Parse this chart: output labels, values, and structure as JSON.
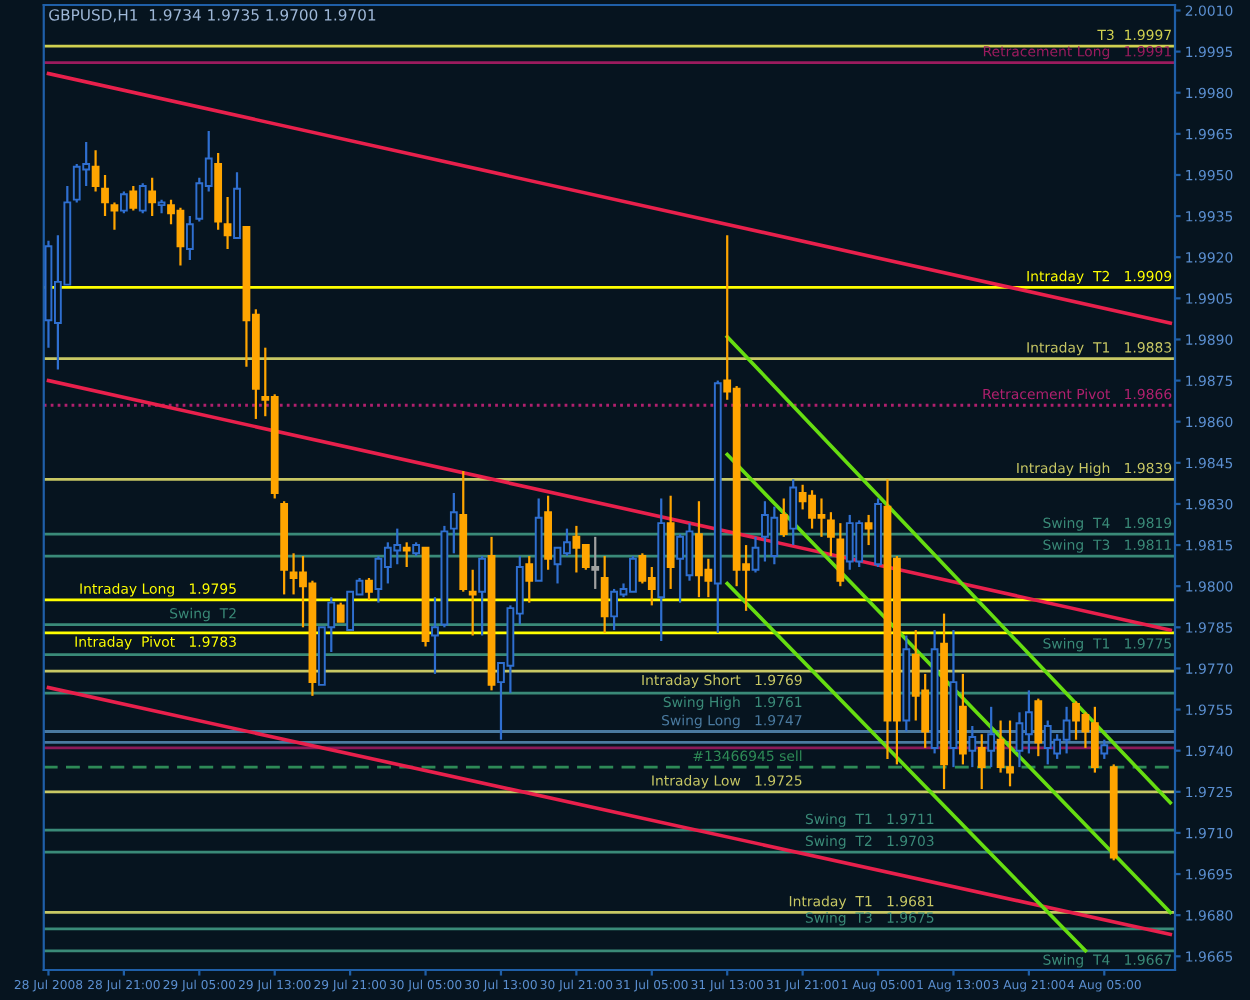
{
  "chart_data": {
    "type": "candlestick",
    "title": "GBPUSD,H1  1.9734 1.9735 1.9700 1.9701",
    "categories": [
      "28 Jul 2008",
      null,
      null,
      null,
      null,
      null,
      null,
      null,
      "28 Jul 21:00",
      null,
      null,
      null,
      null,
      null,
      null,
      null,
      "29 Jul 05:00",
      null,
      null,
      null,
      null,
      null,
      null,
      null,
      "29 Jul 13:00",
      null,
      null,
      null,
      null,
      null,
      null,
      null,
      "29 Jul 21:00",
      null,
      null,
      null,
      null,
      null,
      null,
      null,
      "30 Jul 05:00",
      null,
      null,
      null,
      null,
      null,
      null,
      null,
      "30 Jul 13:00",
      null,
      null,
      null,
      null,
      null,
      null,
      null,
      "30 Jul 21:00",
      null,
      null,
      null,
      null,
      null,
      null,
      null,
      "31 Jul 05:00",
      null,
      null,
      null,
      null,
      null,
      null,
      null,
      "31 Jul 13:00",
      null,
      null,
      null,
      null,
      null,
      null,
      null,
      "31 Jul 21:00",
      null,
      null,
      null,
      null,
      null,
      null,
      null,
      "1 Aug 05:00",
      null,
      null,
      null,
      null,
      null,
      null,
      null,
      "1 Aug 13:00",
      null,
      null,
      null,
      null,
      null,
      null,
      null,
      "3 Aug 21:00",
      null,
      null,
      null,
      null,
      null,
      null,
      null,
      "4 Aug 05:00",
      null,
      null,
      null,
      null,
      null,
      null,
      null
    ],
    "ylim": [
      1.966,
      2.0012
    ],
    "yticks": [
      {
        "value": 1.9665,
        "label": "1.9665"
      },
      {
        "value": 1.968,
        "label": "1.9680"
      },
      {
        "value": 1.9695,
        "label": "1.9695"
      },
      {
        "value": 1.971,
        "label": "1.9710"
      },
      {
        "value": 1.9725,
        "label": "1.9725"
      },
      {
        "value": 1.974,
        "label": "1.9740"
      },
      {
        "value": 1.9755,
        "label": "1.9755"
      },
      {
        "value": 1.977,
        "label": "1.9770"
      },
      {
        "value": 1.9785,
        "label": "1.9785"
      },
      {
        "value": 1.98,
        "label": "1.9800"
      },
      {
        "value": 1.9815,
        "label": "1.9815"
      },
      {
        "value": 1.983,
        "label": "1.9830"
      },
      {
        "value": 1.9845,
        "label": "1.9845"
      },
      {
        "value": 1.986,
        "label": "1.9860"
      },
      {
        "value": 1.9875,
        "label": "1.9875"
      },
      {
        "value": 1.989,
        "label": "1.9890"
      },
      {
        "value": 1.9905,
        "label": "1.9905"
      },
      {
        "value": 1.992,
        "label": "1.9920"
      },
      {
        "value": 1.9935,
        "label": "1.9935"
      },
      {
        "value": 1.995,
        "label": "1.9950"
      },
      {
        "value": 1.9965,
        "label": "1.9965"
      },
      {
        "value": 1.998,
        "label": "1.9980"
      },
      {
        "value": 1.9995,
        "label": "1.9995"
      },
      {
        "value": 2.001,
        "label": "2.0010"
      }
    ],
    "series": [
      {
        "type": "line",
        "color": "#e8204c",
        "values": [
          1.9987,
          null,
          null,
          null,
          null,
          null,
          null,
          null,
          null,
          null,
          null,
          null,
          null,
          null,
          null,
          null,
          null,
          null,
          null,
          null,
          null,
          null,
          null,
          null,
          null,
          null,
          null,
          null,
          null,
          null,
          null,
          null,
          null,
          null,
          null,
          null,
          null,
          null,
          null,
          null,
          null,
          null,
          null,
          null,
          null,
          null,
          null,
          null,
          null,
          null,
          null,
          null,
          null,
          null,
          null,
          null,
          null,
          null,
          null,
          null,
          null,
          null,
          null,
          null,
          null,
          null,
          null,
          null,
          null,
          null,
          null,
          null,
          null,
          null,
          null,
          null,
          null,
          null,
          null,
          null,
          null,
          null,
          null,
          null,
          null,
          null,
          null,
          null,
          null,
          null,
          null,
          null,
          null,
          null,
          null,
          null,
          null,
          null,
          null,
          null,
          null,
          null,
          null,
          null,
          null,
          null,
          null,
          null,
          null,
          null,
          null,
          null,
          null,
          null,
          null,
          null,
          null,
          null,
          null,
          1.9896
        ]
      },
      {
        "type": "line",
        "color": "#e8204c",
        "values": [
          1.9875,
          null,
          null,
          null,
          null,
          null,
          null,
          null,
          null,
          null,
          null,
          null,
          null,
          null,
          null,
          null,
          null,
          null,
          null,
          null,
          null,
          null,
          null,
          null,
          null,
          null,
          null,
          null,
          null,
          null,
          null,
          null,
          null,
          null,
          null,
          null,
          null,
          null,
          null,
          null,
          null,
          null,
          null,
          null,
          null,
          null,
          null,
          null,
          null,
          null,
          null,
          null,
          null,
          null,
          null,
          null,
          null,
          null,
          null,
          null,
          null,
          null,
          null,
          null,
          null,
          null,
          null,
          null,
          null,
          null,
          null,
          null,
          null,
          null,
          null,
          null,
          null,
          null,
          null,
          null,
          null,
          null,
          null,
          null,
          null,
          null,
          null,
          null,
          null,
          null,
          null,
          null,
          null,
          null,
          null,
          null,
          null,
          null,
          null,
          null,
          null,
          null,
          null,
          null,
          null,
          null,
          null,
          null,
          null,
          null,
          null,
          null,
          null,
          null,
          null,
          null,
          null,
          null,
          null,
          1.9784
        ]
      },
      {
        "type": "line",
        "color": "#e8204c",
        "values": [
          1.9763,
          null,
          null,
          null,
          null,
          null,
          null,
          null,
          null,
          null,
          null,
          null,
          null,
          null,
          null,
          null,
          null,
          null,
          null,
          null,
          null,
          null,
          null,
          null,
          null,
          null,
          null,
          null,
          null,
          null,
          null,
          null,
          null,
          null,
          null,
          null,
          null,
          null,
          null,
          null,
          null,
          null,
          null,
          null,
          null,
          null,
          null,
          null,
          null,
          null,
          null,
          null,
          null,
          null,
          null,
          null,
          null,
          null,
          null,
          null,
          null,
          null,
          null,
          null,
          null,
          null,
          null,
          null,
          null,
          null,
          null,
          null,
          null,
          null,
          null,
          null,
          null,
          null,
          null,
          null,
          null,
          null,
          null,
          null,
          null,
          null,
          null,
          null,
          null,
          null,
          null,
          null,
          null,
          null,
          null,
          null,
          null,
          null,
          null,
          null,
          null,
          null,
          null,
          null,
          null,
          null,
          null,
          null,
          null,
          null,
          null,
          null,
          null,
          null,
          null,
          null,
          null,
          null,
          null,
          1.9673
        ]
      },
      {
        "type": "line",
        "color": "#66dd11",
        "values": [
          null,
          null,
          null,
          null,
          null,
          null,
          null,
          null,
          null,
          null,
          null,
          null,
          null,
          null,
          null,
          null,
          null,
          null,
          null,
          null,
          null,
          null,
          null,
          null,
          null,
          null,
          null,
          null,
          null,
          null,
          null,
          null,
          null,
          null,
          null,
          null,
          null,
          null,
          null,
          null,
          null,
          null,
          null,
          null,
          null,
          null,
          null,
          null,
          null,
          null,
          null,
          null,
          null,
          null,
          null,
          null,
          null,
          null,
          null,
          null,
          null,
          null,
          null,
          null,
          null,
          null,
          null,
          null,
          null,
          null,
          null,
          null,
          1.9891,
          null,
          null,
          null,
          null,
          null,
          null,
          null,
          null,
          null,
          null,
          null,
          null,
          null,
          null,
          null,
          null,
          null,
          null,
          null,
          null,
          null,
          null,
          null,
          null,
          null,
          null,
          null,
          null,
          null,
          null,
          null,
          null,
          null,
          null,
          null,
          null,
          null,
          null,
          null,
          null,
          null,
          null,
          null,
          null,
          null,
          null,
          1.9721
        ]
      },
      {
        "type": "line",
        "color": "#66dd11",
        "values": [
          null,
          null,
          null,
          null,
          null,
          null,
          null,
          null,
          null,
          null,
          null,
          null,
          null,
          null,
          null,
          null,
          null,
          null,
          null,
          null,
          null,
          null,
          null,
          null,
          null,
          null,
          null,
          null,
          null,
          null,
          null,
          null,
          null,
          null,
          null,
          null,
          null,
          null,
          null,
          null,
          null,
          null,
          null,
          null,
          null,
          null,
          null,
          null,
          null,
          null,
          null,
          null,
          null,
          null,
          null,
          null,
          null,
          null,
          null,
          null,
          null,
          null,
          null,
          null,
          null,
          null,
          null,
          null,
          null,
          null,
          null,
          null,
          1.9848,
          null,
          null,
          null,
          null,
          null,
          null,
          null,
          null,
          null,
          null,
          null,
          null,
          null,
          null,
          null,
          null,
          null,
          null,
          null,
          null,
          null,
          null,
          null,
          null,
          null,
          null,
          null,
          null,
          null,
          null,
          null,
          null,
          null,
          null,
          null,
          null,
          null,
          null,
          null,
          null,
          null,
          null,
          null,
          null,
          null,
          null,
          1.9681
        ]
      },
      {
        "type": "line",
        "color": "#66dd11",
        "values": [
          null,
          null,
          null,
          null,
          null,
          null,
          null,
          null,
          null,
          null,
          null,
          null,
          null,
          null,
          null,
          null,
          null,
          null,
          null,
          null,
          null,
          null,
          null,
          null,
          null,
          null,
          null,
          null,
          null,
          null,
          null,
          null,
          null,
          null,
          null,
          null,
          null,
          null,
          null,
          null,
          null,
          null,
          null,
          null,
          null,
          null,
          null,
          null,
          null,
          null,
          null,
          null,
          null,
          null,
          null,
          null,
          null,
          null,
          null,
          null,
          null,
          null,
          null,
          null,
          null,
          null,
          null,
          null,
          null,
          null,
          null,
          null,
          1.9801,
          null,
          null,
          null,
          null,
          null,
          null,
          null,
          null,
          null,
          null,
          null,
          null,
          null,
          null,
          null,
          null,
          null,
          null,
          null,
          null,
          null,
          null,
          null,
          null,
          null,
          null,
          null,
          null,
          null,
          null,
          null,
          null,
          null,
          null,
          null,
          null,
          null,
          1.9667,
          null,
          null,
          null,
          null,
          null,
          null,
          null,
          null,
          null
        ]
      },
      {
        "type": "candlestick",
        "ohlc": [
          [
            1.9897,
            1.9926,
            1.9887,
            1.9924
          ],
          [
            1.9896,
            1.9928,
            1.9879,
            1.9911
          ],
          [
            1.991,
            1.9946,
            1.991,
            1.994
          ],
          [
            1.9941,
            1.9954,
            1.994,
            1.9953
          ],
          [
            1.9952,
            1.9962,
            1.9946,
            1.9954
          ],
          [
            1.9953,
            1.9959,
            1.9944,
            1.9946
          ],
          [
            1.9945,
            1.995,
            1.9935,
            1.994
          ],
          [
            1.9939,
            1.994,
            1.993,
            1.9937
          ],
          [
            1.9937,
            1.9944,
            1.9936,
            1.9943
          ],
          [
            1.9944,
            1.9946,
            1.9937,
            1.9938
          ],
          [
            1.9937,
            1.9947,
            1.9936,
            1.9946
          ],
          [
            1.9944,
            1.9949,
            1.9935,
            1.994
          ],
          [
            1.9939,
            1.9941,
            1.9936,
            1.994
          ],
          [
            1.9939,
            1.9941,
            1.9932,
            1.9936
          ],
          [
            1.9937,
            1.9938,
            1.9917,
            1.9924
          ],
          [
            1.9923,
            1.9935,
            1.9919,
            1.9932
          ],
          [
            1.9934,
            1.9949,
            1.9933,
            1.9947
          ],
          [
            1.9946,
            1.9966,
            1.9944,
            1.9956
          ],
          [
            1.9954,
            1.9958,
            1.993,
            1.9933
          ],
          [
            1.9932,
            1.9942,
            1.9923,
            1.9928
          ],
          [
            1.9927,
            1.9951,
            1.9927,
            1.9945
          ],
          [
            1.9931,
            1.9931,
            1.988,
            1.9897
          ],
          [
            1.9899,
            1.9901,
            1.9861,
            1.9872
          ],
          [
            1.9869,
            1.9887,
            1.9862,
            1.9868
          ],
          [
            1.9869,
            1.987,
            1.9832,
            1.9834
          ],
          [
            1.983,
            1.9831,
            1.9797,
            1.9806
          ],
          [
            1.9805,
            1.9812,
            1.9797,
            1.9803
          ],
          [
            1.9805,
            1.9811,
            1.9785,
            1.98
          ],
          [
            1.9801,
            1.9802,
            1.976,
            1.9765
          ],
          [
            1.9764,
            1.9785,
            1.9764,
            1.9785
          ],
          [
            1.9785,
            1.9796,
            1.9776,
            1.9794
          ],
          [
            1.9793,
            1.9794,
            1.9787,
            1.9787
          ],
          [
            1.9784,
            1.9798,
            1.9784,
            1.9798
          ],
          [
            1.9797,
            1.9803,
            1.9797,
            1.9802
          ],
          [
            1.9802,
            1.9803,
            1.9795,
            1.9798
          ],
          [
            1.9799,
            1.9811,
            1.9794,
            1.981
          ],
          [
            1.9807,
            1.9816,
            1.9801,
            1.9814
          ],
          [
            1.9813,
            1.9821,
            1.9808,
            1.9815
          ],
          [
            1.9814,
            1.9816,
            1.9807,
            1.9813
          ],
          [
            1.9812,
            1.9816,
            1.9811,
            1.9815
          ],
          [
            1.9814,
            1.9814,
            1.9778,
            1.978
          ],
          [
            1.9782,
            1.9796,
            1.9768,
            1.9785
          ],
          [
            1.9786,
            1.9822,
            1.9785,
            1.982
          ],
          [
            1.9821,
            1.9834,
            1.9812,
            1.9827
          ],
          [
            1.9826,
            1.9842,
            1.9798,
            1.9799
          ],
          [
            1.9798,
            1.9806,
            1.9782,
            1.9797
          ],
          [
            1.9798,
            1.9811,
            1.9782,
            1.981
          ],
          [
            1.9811,
            1.9818,
            1.9762,
            1.9764
          ],
          [
            1.9765,
            1.9772,
            1.9744,
            1.9772
          ],
          [
            1.9771,
            1.9793,
            1.9761,
            1.9792
          ],
          [
            1.979,
            1.9811,
            1.9786,
            1.9807
          ],
          [
            1.9808,
            1.9811,
            1.9794,
            1.9802
          ],
          [
            1.9802,
            1.9832,
            1.9802,
            1.9825
          ],
          [
            1.9827,
            1.9833,
            1.9806,
            1.981
          ],
          [
            1.9808,
            1.9814,
            1.9801,
            1.9814
          ],
          [
            1.9812,
            1.9821,
            1.9811,
            1.9816
          ],
          [
            1.9818,
            1.9822,
            1.9805,
            1.9814
          ],
          [
            1.9815,
            1.9815,
            1.9806,
            1.9807
          ],
          [
            1.9807,
            1.9818,
            1.9799,
            1.9806
          ],
          [
            1.9803,
            1.9811,
            1.9783,
            1.9789
          ],
          [
            1.9789,
            1.9799,
            1.9784,
            1.9798
          ],
          [
            1.9797,
            1.9801,
            1.9796,
            1.9799
          ],
          [
            1.9798,
            1.9811,
            1.9798,
            1.981
          ],
          [
            1.9811,
            1.9812,
            1.9801,
            1.9802
          ],
          [
            1.9803,
            1.9807,
            1.9793,
            1.9799
          ],
          [
            1.9796,
            1.9832,
            1.978,
            1.9823
          ],
          [
            1.9823,
            1.9833,
            1.9799,
            1.9807
          ],
          [
            1.981,
            1.9819,
            1.9794,
            1.9818
          ],
          [
            1.9804,
            1.9823,
            1.9802,
            1.982
          ],
          [
            1.9819,
            1.9831,
            1.9796,
            1.9804
          ],
          [
            1.9806,
            1.981,
            1.9796,
            1.9802
          ],
          [
            1.9801,
            1.9875,
            1.9783,
            1.9874
          ],
          [
            1.9875,
            1.9928,
            1.9868,
            1.9871
          ],
          [
            1.9872,
            1.9873,
            1.98,
            1.9806
          ],
          [
            1.9808,
            1.9815,
            1.9791,
            1.9806
          ],
          [
            1.9806,
            1.9818,
            1.9805,
            1.9814
          ],
          [
            1.9818,
            1.9831,
            1.9809,
            1.9826
          ],
          [
            1.9811,
            1.9829,
            1.9808,
            1.9825
          ],
          [
            1.9826,
            1.9832,
            1.9818,
            1.9819
          ],
          [
            1.9821,
            1.9839,
            1.9815,
            1.9836
          ],
          [
            1.9834,
            1.9837,
            1.9828,
            1.9831
          ],
          [
            1.9833,
            1.9835,
            1.9821,
            1.9825
          ],
          [
            1.9826,
            1.9832,
            1.9818,
            1.9825
          ],
          [
            1.9824,
            1.9827,
            1.9811,
            1.9818
          ],
          [
            1.9817,
            1.9823,
            1.98,
            1.9802
          ],
          [
            1.9809,
            1.9826,
            1.9806,
            1.9823
          ],
          [
            1.9809,
            1.9824,
            1.9807,
            1.9823
          ],
          [
            1.9823,
            1.9826,
            1.9815,
            1.9821
          ],
          [
            1.9808,
            1.9832,
            1.9807,
            1.983
          ],
          [
            1.9829,
            1.9839,
            1.9737,
            1.9751
          ],
          [
            1.981,
            1.9811,
            1.9735,
            1.9751
          ],
          [
            1.9751,
            1.9782,
            1.9747,
            1.9777
          ],
          [
            1.9775,
            1.9784,
            1.9751,
            1.976
          ],
          [
            1.9762,
            1.9768,
            1.9741,
            1.9747
          ],
          [
            1.9741,
            1.9784,
            1.9739,
            1.9777
          ],
          [
            1.9779,
            1.979,
            1.9726,
            1.9735
          ],
          [
            1.9741,
            1.9784,
            1.9734,
            1.9765
          ],
          [
            1.9756,
            1.9768,
            1.9735,
            1.9739
          ],
          [
            1.974,
            1.9749,
            1.9734,
            1.9745
          ],
          [
            1.9741,
            1.9746,
            1.9726,
            1.9734
          ],
          [
            1.974,
            1.9756,
            1.9734,
            1.9746
          ],
          [
            1.9744,
            1.9751,
            1.9732,
            1.9734
          ],
          [
            1.9734,
            1.9751,
            1.9727,
            1.9732
          ],
          [
            1.974,
            1.9754,
            1.9734,
            1.975
          ],
          [
            1.9746,
            1.9762,
            1.9739,
            1.9754
          ],
          [
            1.9758,
            1.9759,
            1.9738,
            1.9743
          ],
          [
            1.9741,
            1.9751,
            1.9735,
            1.9749
          ],
          [
            1.9739,
            1.9746,
            1.9737,
            1.9744
          ],
          [
            1.9744,
            1.9756,
            1.9739,
            1.9751
          ],
          [
            1.9757,
            1.9758,
            1.9744,
            1.9751
          ],
          [
            1.9753,
            1.9754,
            1.9741,
            1.9747
          ],
          [
            1.975,
            1.9756,
            1.9732,
            1.9734
          ],
          [
            1.9739,
            1.9744,
            1.9737,
            1.9742
          ],
          [
            1.9734,
            1.9735,
            1.97,
            1.9701
          ],
          null,
          null,
          null,
          null,
          null,
          null
        ],
        "colors": [
          "#2f6fd0",
          "#2f6fd0",
          "#2f6fd0",
          "#2f6fd0",
          "#2f6fd0",
          "#ffa500",
          "#ffa500",
          "#ffa500",
          "#2f6fd0",
          "#ffa500",
          "#2f6fd0",
          "#ffa500",
          "#2f6fd0",
          "#ffa500",
          "#ffa500",
          "#2f6fd0",
          "#2f6fd0",
          "#2f6fd0",
          "#ffa500",
          "#ffa500",
          "#2f6fd0",
          "#ffa500",
          "#ffa500",
          "#ffa500",
          "#ffa500",
          "#ffa500",
          "#ffa500",
          "#ffa500",
          "#ffa500",
          "#2f6fd0",
          "#2f6fd0",
          "#ffa500",
          "#2f6fd0",
          "#2f6fd0",
          "#ffa500",
          "#2f6fd0",
          "#2f6fd0",
          "#2f6fd0",
          "#ffa500",
          "#2f6fd0",
          "#ffa500",
          "#2f6fd0",
          "#2f6fd0",
          "#2f6fd0",
          "#ffa500",
          "#ffa500",
          "#2f6fd0",
          "#ffa500",
          "#2f6fd0",
          "#2f6fd0",
          "#2f6fd0",
          "#ffa500",
          "#2f6fd0",
          "#ffa500",
          "#2f6fd0",
          "#2f6fd0",
          "#ffa500",
          "#ffa500",
          "#a0a0a0",
          "#ffa500",
          "#2f6fd0",
          "#2f6fd0",
          "#2f6fd0",
          "#ffa500",
          "#ffa500",
          "#2f6fd0",
          "#ffa500",
          "#2f6fd0",
          "#2f6fd0",
          "#ffa500",
          "#ffa500",
          "#2f6fd0",
          "#ffa500",
          "#ffa500",
          "#ffa500",
          "#2f6fd0",
          "#2f6fd0",
          "#2f6fd0",
          "#ffa500",
          "#2f6fd0",
          "#ffa500",
          "#ffa500",
          "#ffa500",
          "#ffa500",
          "#ffa500",
          "#2f6fd0",
          "#2f6fd0",
          "#ffa500",
          "#2f6fd0",
          "#ffa500",
          "#ffa500",
          "#2f6fd0",
          "#ffa500",
          "#ffa500",
          "#2f6fd0",
          "#ffa500",
          "#2f6fd0",
          "#ffa500",
          "#2f6fd0",
          "#ffa500",
          "#2f6fd0",
          "#ffa500",
          "#ffa500",
          "#2f6fd0",
          "#2f6fd0",
          "#ffa500",
          "#2f6fd0",
          "#2f6fd0",
          "#2f6fd0",
          "#ffa500",
          "#ffa500",
          "#ffa500",
          "#2f6fd0",
          "#ffa500",
          null,
          null,
          null,
          null,
          null,
          null
        ]
      }
    ],
    "ref_lines": [
      {
        "axis": "y",
        "value": 1.9997,
        "label": "T3  1.9997",
        "color": "#d0d050",
        "line_style": "solid"
      },
      {
        "axis": "y",
        "value": 1.9991,
        "label": "Retracement Long   1.9991",
        "color": "#9b1b5e",
        "line_style": "solid"
      },
      {
        "axis": "y",
        "value": 1.9909,
        "label": "Intraday  T2   1.9909",
        "color": "#ffff00",
        "line_style": "solid"
      },
      {
        "axis": "y",
        "value": 1.9883,
        "label": "Intraday  T1   1.9883",
        "color": "#c8c864",
        "line_style": "solid"
      },
      {
        "axis": "y",
        "value": 1.9866,
        "label": "Retracement Pivot   1.9866",
        "color": "#b0206e",
        "line_style": "dotted"
      },
      {
        "axis": "y",
        "value": 1.9839,
        "label": "Intraday High   1.9839",
        "color": "#c8c864",
        "line_style": "solid"
      },
      {
        "axis": "y",
        "value": 1.9819,
        "label": "Swing  T4   1.9819",
        "color": "#3a8a78",
        "line_style": "solid"
      },
      {
        "axis": "y",
        "value": 1.9811,
        "label": "Swing  T3   1.9811",
        "color": "#3a8a78",
        "line_style": "solid"
      },
      {
        "axis": "y",
        "value": 1.9795,
        "label": "Intraday Long   1.9795",
        "color": "#ffff00",
        "line_style": "solid"
      },
      {
        "axis": "y",
        "value": 1.9786,
        "label": "Swing  T2",
        "color": "#3a8a78",
        "line_style": "solid"
      },
      {
        "axis": "y",
        "value": 1.9783,
        "label": "Intraday  Pivot   1.9783",
        "color": "#ffff00",
        "line_style": "solid"
      },
      {
        "axis": "y",
        "value": 1.9775,
        "label": "Swing  T1   1.9775",
        "color": "#3a8a78",
        "line_style": "solid"
      },
      {
        "axis": "y",
        "value": 1.9769,
        "label": "Intraday Short   1.9769",
        "color": "#c8c864",
        "line_style": "solid"
      },
      {
        "axis": "y",
        "value": 1.9761,
        "label": "Swing High   1.9761",
        "color": "#3a8a78",
        "line_style": "solid"
      },
      {
        "axis": "y",
        "value": 1.9747,
        "label": "Swing Long   1.9747",
        "color": "#4a7aa0",
        "line_style": "solid"
      },
      {
        "axis": "y",
        "value": 1.9743,
        "label": null,
        "color": "#4a7aa0",
        "line_style": "solid"
      },
      {
        "axis": "y",
        "value": 1.9741,
        "label": null,
        "color": "#8b1a5a",
        "line_style": "solid"
      },
      {
        "axis": "y",
        "value": 1.9734,
        "label": "#13466945 sell",
        "color": "#2e8b57",
        "line_style": "dashed"
      },
      {
        "axis": "y",
        "value": 1.9725,
        "label": "Intraday Low   1.9725",
        "color": "#c8c864",
        "line_style": "solid"
      },
      {
        "axis": "y",
        "value": 1.9711,
        "label": "Swing  T1   1.9711",
        "color": "#3a8a78",
        "line_style": "solid"
      },
      {
        "axis": "y",
        "value": 1.9703,
        "label": "Swing  T2   1.9703",
        "color": "#3a8a78",
        "line_style": "solid"
      },
      {
        "axis": "y",
        "value": 1.9681,
        "label": "Intraday  T1   1.9681",
        "color": "#c8c864",
        "line_style": "solid"
      },
      {
        "axis": "y",
        "value": 1.9675,
        "label": "Swing  T3   1.9675",
        "color": "#3a8a78",
        "line_style": "solid"
      },
      {
        "axis": "y",
        "value": 1.9667,
        "label": "Swing  T4   1.9667",
        "color": "#3a8a78",
        "line_style": "solid"
      }
    ]
  }
}
